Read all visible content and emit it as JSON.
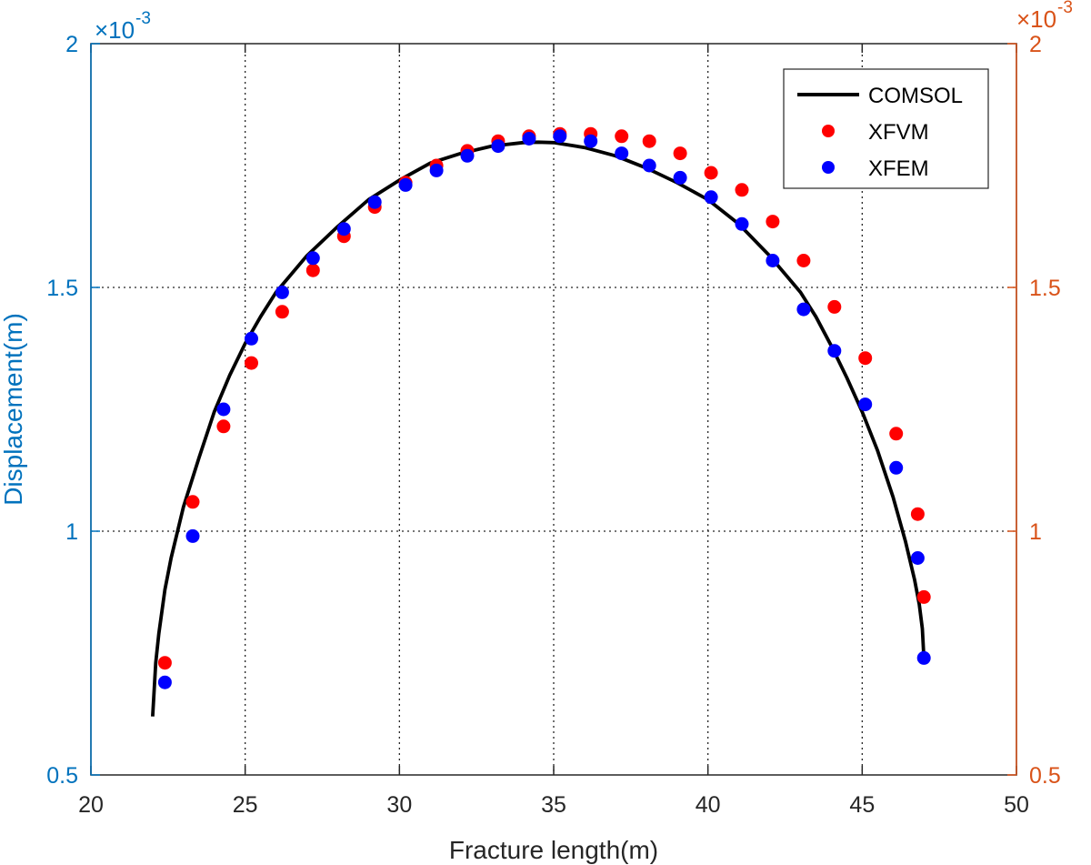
{
  "chart_data": {
    "type": "scatter",
    "title": "",
    "xlabel": "Fracture length(m)",
    "ylabel_left": "Displacement(m)",
    "ylabel_right": "",
    "xlim": [
      20,
      50
    ],
    "ylim": [
      0.5,
      2
    ],
    "y_multiplier_text": "×10",
    "y_multiplier_exp": "-3",
    "x_ticks": [
      "20",
      "25",
      "30",
      "35",
      "40",
      "45",
      "50"
    ],
    "y_ticks": [
      "0.5",
      "1",
      "1.5",
      "2"
    ],
    "grid": true,
    "legend_position": "top-right",
    "colors": {
      "left_axis": "#0072BD",
      "right_axis": "#D95319",
      "comsol": "#000000",
      "xfvm": "#FF0000",
      "xfem": "#0000FF",
      "frame": "#262626"
    },
    "series": [
      {
        "name": "COMSOL",
        "kind": "line",
        "x": [
          22.0,
          22.1,
          22.2,
          22.4,
          22.6,
          23.0,
          23.5,
          24.0,
          24.5,
          25.0,
          25.5,
          26.0,
          27.0,
          28.0,
          29.0,
          30.0,
          31.0,
          32.0,
          33.0,
          34.0,
          34.5,
          35.0,
          36.0,
          37.0,
          38.0,
          39.0,
          40.0,
          41.0,
          42.0,
          43.0,
          43.5,
          44.0,
          44.5,
          45.0,
          45.5,
          46.0,
          46.4,
          46.7,
          46.85,
          46.95,
          47.0
        ],
        "y": [
          0.62,
          0.73,
          0.79,
          0.88,
          0.945,
          1.05,
          1.15,
          1.245,
          1.32,
          1.385,
          1.44,
          1.49,
          1.565,
          1.625,
          1.68,
          1.72,
          1.755,
          1.775,
          1.79,
          1.797,
          1.798,
          1.797,
          1.787,
          1.77,
          1.745,
          1.715,
          1.68,
          1.63,
          1.565,
          1.49,
          1.44,
          1.38,
          1.315,
          1.245,
          1.165,
          1.07,
          0.98,
          0.9,
          0.85,
          0.8,
          0.74
        ]
      },
      {
        "name": "XFVM",
        "kind": "scatter",
        "x": [
          22.4,
          23.3,
          24.3,
          25.2,
          26.2,
          27.2,
          28.2,
          29.2,
          30.2,
          31.2,
          32.2,
          33.2,
          34.2,
          35.2,
          36.2,
          37.2,
          38.1,
          39.1,
          40.1,
          41.1,
          42.1,
          43.1,
          44.1,
          45.1,
          46.1,
          46.8,
          47.0
        ],
        "y": [
          0.73,
          1.06,
          1.215,
          1.345,
          1.45,
          1.535,
          1.605,
          1.665,
          1.715,
          1.75,
          1.78,
          1.8,
          1.81,
          1.815,
          1.815,
          1.81,
          1.8,
          1.775,
          1.735,
          1.7,
          1.635,
          1.555,
          1.46,
          1.355,
          1.2,
          1.035,
          0.865
        ]
      },
      {
        "name": "XFEM",
        "kind": "scatter",
        "x": [
          22.4,
          23.3,
          24.3,
          25.2,
          26.2,
          27.2,
          28.2,
          29.2,
          30.2,
          31.2,
          32.2,
          33.2,
          34.2,
          35.2,
          36.2,
          37.2,
          38.1,
          39.1,
          40.1,
          41.1,
          42.1,
          43.1,
          44.1,
          45.1,
          46.1,
          46.8,
          47.0
        ],
        "y": [
          0.69,
          0.99,
          1.25,
          1.395,
          1.49,
          1.56,
          1.62,
          1.675,
          1.71,
          1.74,
          1.77,
          1.79,
          1.805,
          1.81,
          1.8,
          1.775,
          1.75,
          1.725,
          1.685,
          1.63,
          1.555,
          1.455,
          1.37,
          1.26,
          1.13,
          0.945,
          0.74
        ]
      }
    ]
  }
}
